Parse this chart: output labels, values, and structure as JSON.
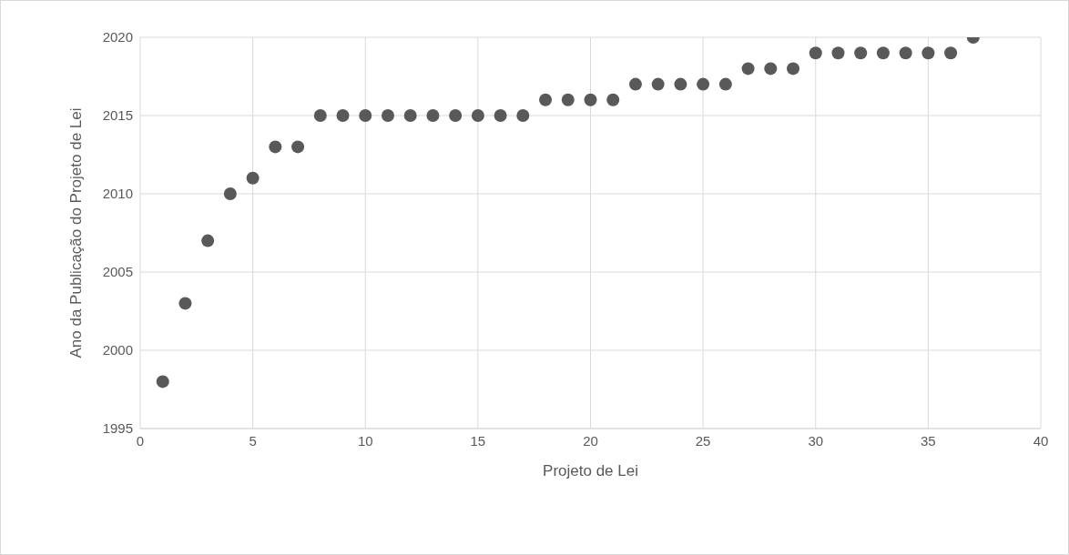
{
  "chart_data": {
    "type": "scatter",
    "xlabel": "Projeto de Lei",
    "ylabel": "Ano da Publicação do Projeto de Lei",
    "x": [
      1,
      2,
      3,
      4,
      5,
      6,
      7,
      8,
      9,
      10,
      11,
      12,
      13,
      14,
      15,
      16,
      17,
      18,
      19,
      20,
      21,
      22,
      23,
      24,
      25,
      26,
      27,
      28,
      29,
      30,
      31,
      32,
      33,
      34,
      35,
      36,
      37
    ],
    "series": [
      {
        "color": "#595959",
        "values": [
          1998,
          2003,
          2007,
          2010,
          2011,
          2013,
          2013,
          2015,
          2015,
          2015,
          2015,
          2015,
          2015,
          2015,
          2015,
          2015,
          2015,
          2016,
          2016,
          2016,
          2016,
          2017,
          2017,
          2017,
          2017,
          2017,
          2018,
          2018,
          2018,
          2019,
          2019,
          2019,
          2019,
          2019,
          2019,
          2019,
          2020
        ]
      }
    ],
    "xlim": [
      0,
      40
    ],
    "xticks": [
      0,
      5,
      10,
      15,
      20,
      25,
      30,
      35,
      40
    ],
    "ylim": [
      1995,
      2020
    ],
    "yticks": [
      1995,
      2000,
      2005,
      2010,
      2015,
      2020
    ],
    "grid": true,
    "legend": false,
    "marker": "circle"
  }
}
